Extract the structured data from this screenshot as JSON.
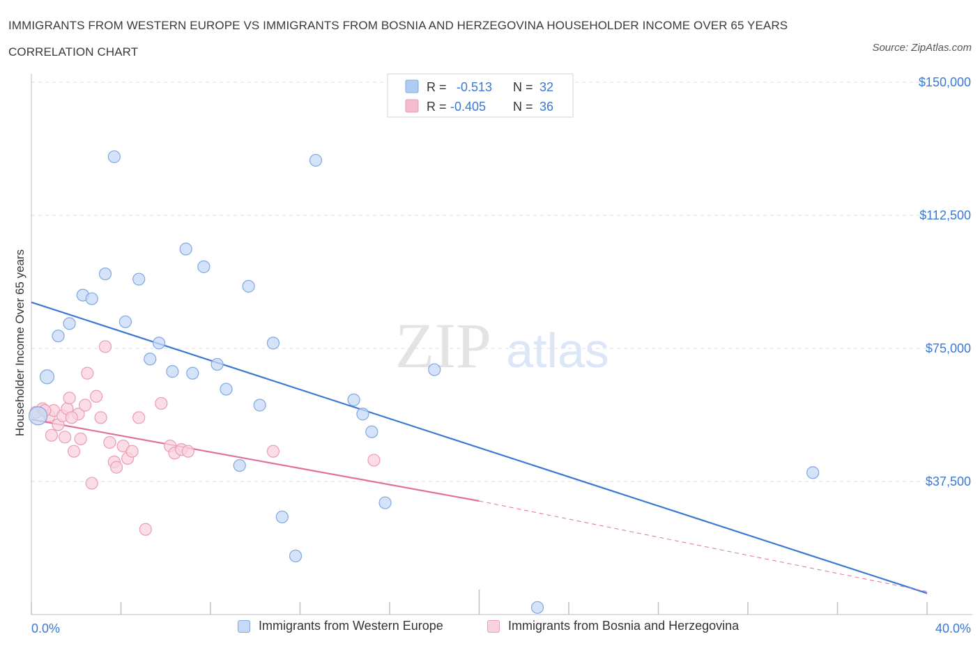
{
  "header": {
    "title": "IMMIGRANTS FROM WESTERN EUROPE VS IMMIGRANTS FROM BOSNIA AND HERZEGOVINA HOUSEHOLDER INCOME OVER 65 YEARS CORRELATION CHART",
    "source": "Source: ZipAtlas.com"
  },
  "watermark": {
    "zip": "ZIP",
    "atlas": "atlas"
  },
  "stats_box": {
    "rows": [
      {
        "r_label": "R =",
        "r_value": "-0.513",
        "n_label": "N =",
        "n_value": "32",
        "color": "#aecbf2"
      },
      {
        "r_label": "R =",
        "r_value": "-0.405",
        "n_label": "N =",
        "n_value": "36",
        "color": "#f5bccd"
      }
    ]
  },
  "legend": [
    {
      "label": "Immigrants from Western Europe",
      "fill": "#c6daf7",
      "stroke": "#7fa7e0"
    },
    {
      "label": "Immigrants from Bosnia and Herzegovina",
      "fill": "#f9d2de",
      "stroke": "#eb9bb4"
    }
  ],
  "chart_data": {
    "type": "scatter",
    "title": "IMMIGRANTS FROM WESTERN EUROPE VS IMMIGRANTS FROM BOSNIA AND HERZEGOVINA HOUSEHOLDER INCOME OVER 65 YEARS CORRELATION CHART",
    "xlabel": "",
    "ylabel": "Householder Income Over 65 years",
    "xlim": [
      0,
      40
    ],
    "ylim": [
      0,
      150000
    ],
    "x_tick_labels": [
      "0.0%",
      "40.0%"
    ],
    "y_ticks": [
      {
        "value": 37500,
        "label": "$37,500"
      },
      {
        "value": 75000,
        "label": "$75,000"
      },
      {
        "value": 112500,
        "label": "$112,500"
      },
      {
        "value": 150000,
        "label": "$150,000"
      }
    ],
    "grid": true,
    "legend_position": "bottom",
    "series": [
      {
        "name": "Immigrants from Western Europe",
        "color": "#3a78d4",
        "point_fill": "#c6daf7",
        "point_stroke": "#7fa7e0",
        "points": [
          {
            "x": 0.3,
            "y": 56000
          },
          {
            "x": 0.7,
            "y": 67000
          },
          {
            "x": 1.2,
            "y": 78500
          },
          {
            "x": 1.7,
            "y": 82000
          },
          {
            "x": 2.3,
            "y": 90000
          },
          {
            "x": 2.7,
            "y": 89000
          },
          {
            "x": 3.3,
            "y": 96000
          },
          {
            "x": 3.7,
            "y": 129000
          },
          {
            "x": 4.2,
            "y": 82500
          },
          {
            "x": 4.8,
            "y": 94500
          },
          {
            "x": 5.3,
            "y": 72000
          },
          {
            "x": 5.7,
            "y": 76500
          },
          {
            "x": 6.3,
            "y": 68500
          },
          {
            "x": 6.9,
            "y": 103000
          },
          {
            "x": 7.2,
            "y": 68000
          },
          {
            "x": 7.7,
            "y": 98000
          },
          {
            "x": 8.3,
            "y": 70500
          },
          {
            "x": 8.7,
            "y": 63500
          },
          {
            "x": 9.3,
            "y": 42000
          },
          {
            "x": 9.7,
            "y": 92500
          },
          {
            "x": 10.2,
            "y": 59000
          },
          {
            "x": 10.8,
            "y": 76500
          },
          {
            "x": 11.2,
            "y": 27500
          },
          {
            "x": 11.8,
            "y": 16500
          },
          {
            "x": 12.7,
            "y": 128000
          },
          {
            "x": 14.4,
            "y": 60500
          },
          {
            "x": 14.8,
            "y": 56500
          },
          {
            "x": 15.2,
            "y": 51500
          },
          {
            "x": 15.8,
            "y": 31500
          },
          {
            "x": 18.0,
            "y": 69000
          },
          {
            "x": 22.6,
            "y": 2000
          },
          {
            "x": 34.9,
            "y": 40000
          }
        ],
        "trendline": {
          "x": [
            0,
            40
          ],
          "y": [
            88000,
            6000
          ]
        }
      },
      {
        "name": "Immigrants from Bosnia and Herzegovina",
        "color": "#e0709a",
        "point_fill": "#f9d2de",
        "point_stroke": "#eb9bb4",
        "points": [
          {
            "x": 0.2,
            "y": 57000
          },
          {
            "x": 0.5,
            "y": 58000
          },
          {
            "x": 0.8,
            "y": 56000
          },
          {
            "x": 0.9,
            "y": 50500
          },
          {
            "x": 1.0,
            "y": 57500
          },
          {
            "x": 1.2,
            "y": 53500
          },
          {
            "x": 1.4,
            "y": 56000
          },
          {
            "x": 1.5,
            "y": 50000
          },
          {
            "x": 1.6,
            "y": 58000
          },
          {
            "x": 1.7,
            "y": 61000
          },
          {
            "x": 1.9,
            "y": 46000
          },
          {
            "x": 2.1,
            "y": 56500
          },
          {
            "x": 2.2,
            "y": 49500
          },
          {
            "x": 2.4,
            "y": 59000
          },
          {
            "x": 2.5,
            "y": 68000
          },
          {
            "x": 2.7,
            "y": 37000
          },
          {
            "x": 2.9,
            "y": 61500
          },
          {
            "x": 3.1,
            "y": 55500
          },
          {
            "x": 3.3,
            "y": 75500
          },
          {
            "x": 3.5,
            "y": 48500
          },
          {
            "x": 3.7,
            "y": 43000
          },
          {
            "x": 3.8,
            "y": 41500
          },
          {
            "x": 4.1,
            "y": 47500
          },
          {
            "x": 4.3,
            "y": 44000
          },
          {
            "x": 4.5,
            "y": 46000
          },
          {
            "x": 4.8,
            "y": 55500
          },
          {
            "x": 5.1,
            "y": 24000
          },
          {
            "x": 5.8,
            "y": 59500
          },
          {
            "x": 6.2,
            "y": 47500
          },
          {
            "x": 6.4,
            "y": 45500
          },
          {
            "x": 6.7,
            "y": 46500
          },
          {
            "x": 7.0,
            "y": 46000
          },
          {
            "x": 10.8,
            "y": 46000
          },
          {
            "x": 15.3,
            "y": 43500
          },
          {
            "x": 1.8,
            "y": 55500
          },
          {
            "x": 0.6,
            "y": 57500
          }
        ],
        "trendline": {
          "x": [
            0,
            20
          ],
          "y": [
            55000,
            32000
          ]
        },
        "trendline_extension": {
          "x": [
            20,
            40
          ],
          "y": [
            32000,
            6500
          ]
        }
      }
    ]
  }
}
